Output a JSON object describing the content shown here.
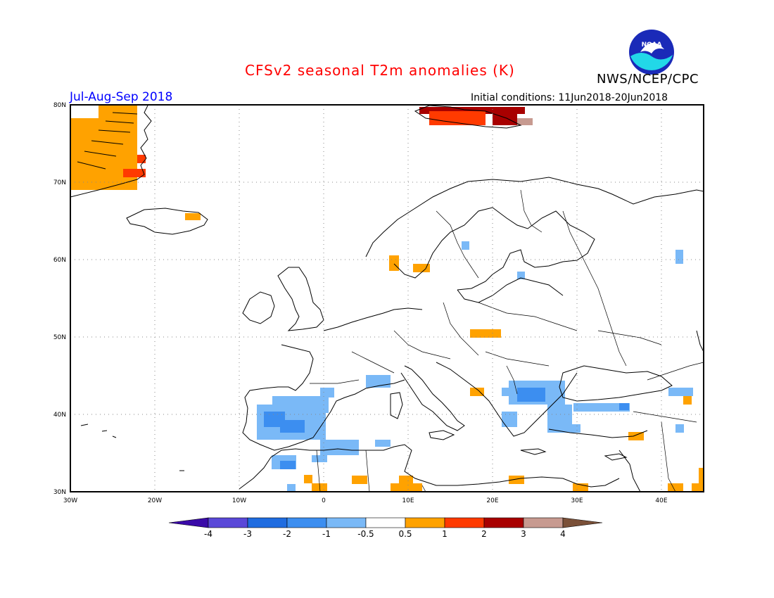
{
  "title": "CFSv2 seasonal T2m anomalies (K)",
  "agency": "NWS/NCEP/CPC",
  "logo_text": "NOAA",
  "period": "Jul-Aug-Sep 2018",
  "initial_conditions": "Initial conditions: 11Jun2018-20Jun2018",
  "map": {
    "region": "Europe",
    "lon_range": [
      -30,
      45
    ],
    "lat_range": [
      30,
      80
    ],
    "lat_labels": [
      "30N",
      "40N",
      "50N",
      "60N",
      "70N",
      "80N"
    ],
    "lon_labels": [
      "30W",
      "20W",
      "10W",
      "0",
      "10E",
      "20E",
      "30E",
      "40E"
    ]
  },
  "colorbar": {
    "ticks": [
      "-4",
      "-3",
      "-2",
      "-1",
      "-0.5",
      "0.5",
      "1",
      "2",
      "3",
      "4"
    ],
    "colors": [
      "#3a0aa8",
      "#5a48d8",
      "#1f6ce0",
      "#3c8ef0",
      "#7ab9f7",
      "#ffffff",
      "#ffa200",
      "#ff3a00",
      "#a80000",
      "#c79a90",
      "#7a5038"
    ]
  }
}
